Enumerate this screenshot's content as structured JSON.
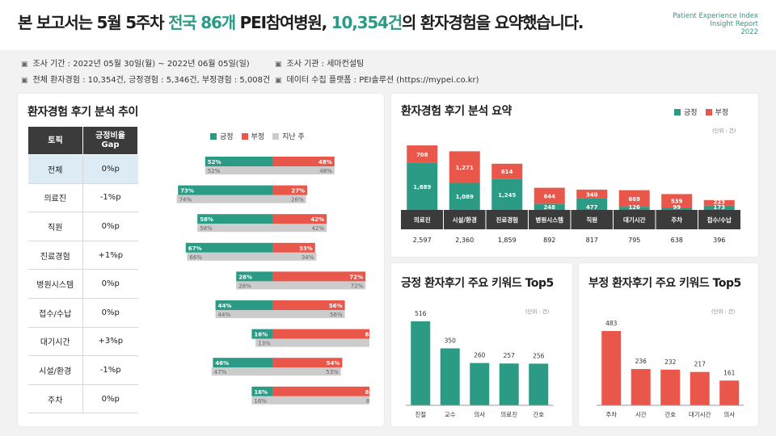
{
  "header": {
    "title_part1": "본 보고서는 5월 5주차 ",
    "title_hl1": "전국 86개",
    "title_part2": " PEI참여병원, ",
    "title_hl2": "10,354건",
    "title_part3": "의 환자경험을 요약했습니다.",
    "brand_line1": "Patient Experience Index",
    "brand_line2": "Insight Report",
    "brand_line3": "2022"
  },
  "meta": {
    "period": "조사 기간 : 2022년 05월 30일(월) ~ 2022년 06월 05일(일)",
    "counts": "전체 환자경험 : 10,354건, 긍정경험 : 5,346건, 부정경험 : 5,008건",
    "agency": "조사 기관 : 세마컨설팅",
    "platform": "데이터 수집 플랫폼 : PEI솔루션 (https://mypei.co.kr)"
  },
  "colors": {
    "positive": "#2b9b86",
    "negative": "#e8574a",
    "last_week": "#cccccc",
    "accent": "#2b9b86"
  },
  "trend": {
    "title": "환자경험 후기 분석 추이",
    "col_topic": "토픽",
    "col_gap": "긍정비율 Gap",
    "legend": {
      "pos": "긍정",
      "neg": "부정",
      "last": "지난 주"
    },
    "rows": [
      {
        "topic": "전체",
        "gap": "0%p",
        "gap_color": "neutral",
        "pos": 52,
        "neg": 48,
        "last_pos": 52,
        "last_neg": 48,
        "active": true
      },
      {
        "topic": "의료진",
        "gap": "-1%p",
        "gap_color": "red",
        "pos": 73,
        "neg": 27,
        "last_pos": 74,
        "last_neg": 26
      },
      {
        "topic": "직원",
        "gap": "0%p",
        "gap_color": "neutral",
        "pos": 58,
        "neg": 42,
        "last_pos": 58,
        "last_neg": 42
      },
      {
        "topic": "진료경험",
        "gap": "+1%p",
        "gap_color": "neutral",
        "pos": 67,
        "neg": 33,
        "last_pos": 66,
        "last_neg": 34
      },
      {
        "topic": "병원시스템",
        "gap": "0%p",
        "gap_color": "neutral",
        "pos": 28,
        "neg": 72,
        "last_pos": 28,
        "last_neg": 72
      },
      {
        "topic": "접수/수납",
        "gap": "0%p",
        "gap_color": "neutral",
        "pos": 44,
        "neg": 56,
        "last_pos": 44,
        "last_neg": 56
      },
      {
        "topic": "대기시간",
        "gap": "+3%p",
        "gap_color": "green",
        "pos": 16,
        "neg": 84,
        "last_pos": 13,
        "last_neg": 87
      },
      {
        "topic": "시설/환경",
        "gap": "-1%p",
        "gap_color": "red",
        "pos": 46,
        "neg": 54,
        "last_pos": 47,
        "last_neg": 53
      },
      {
        "topic": "주차",
        "gap": "0%p",
        "gap_color": "neutral",
        "pos": 16,
        "neg": 84,
        "last_pos": 16,
        "last_neg": 84
      }
    ]
  },
  "summary": {
    "title": "환자경험 후기 분석 요약",
    "unit": "(단위 : 건)",
    "legend": {
      "pos": "긍정",
      "neg": "부정"
    }
  },
  "positive_kw": {
    "title": "긍정 환자후기 주요 키워드 Top5",
    "unit": "(단위 : 건)"
  },
  "negative_kw": {
    "title": "부정 환자후기 주요 키워드 Top5",
    "unit": "(단위 : 건)"
  },
  "chart_data": [
    {
      "type": "bar",
      "title": "환자경험 후기 분석 요약",
      "stacked": true,
      "categories": [
        "의료진",
        "시설/환경",
        "진료경험",
        "병원시스템",
        "직원",
        "대기시간",
        "주차",
        "접수/수납"
      ],
      "series": [
        {
          "name": "긍정",
          "values": [
            1889,
            1089,
            1245,
            248,
            477,
            126,
            99,
            173
          ]
        },
        {
          "name": "부정",
          "values": [
            708,
            1271,
            614,
            644,
            340,
            669,
            539,
            223
          ]
        }
      ],
      "totals": [
        "2,597",
        "2,360",
        "1,859",
        "892",
        "817",
        "795",
        "638",
        "396"
      ],
      "legend_position": "top-right"
    },
    {
      "type": "bar",
      "title": "긍정 환자후기 주요 키워드 Top5",
      "categories": [
        "친절",
        "교수",
        "의사",
        "의료진",
        "간호"
      ],
      "values": [
        516,
        350,
        260,
        257,
        256
      ]
    },
    {
      "type": "bar",
      "title": "부정 환자후기 주요 키워드 Top5",
      "categories": [
        "주차",
        "시간",
        "간호",
        "대기시간",
        "의사"
      ],
      "values": [
        483,
        236,
        232,
        217,
        161
      ]
    }
  ]
}
